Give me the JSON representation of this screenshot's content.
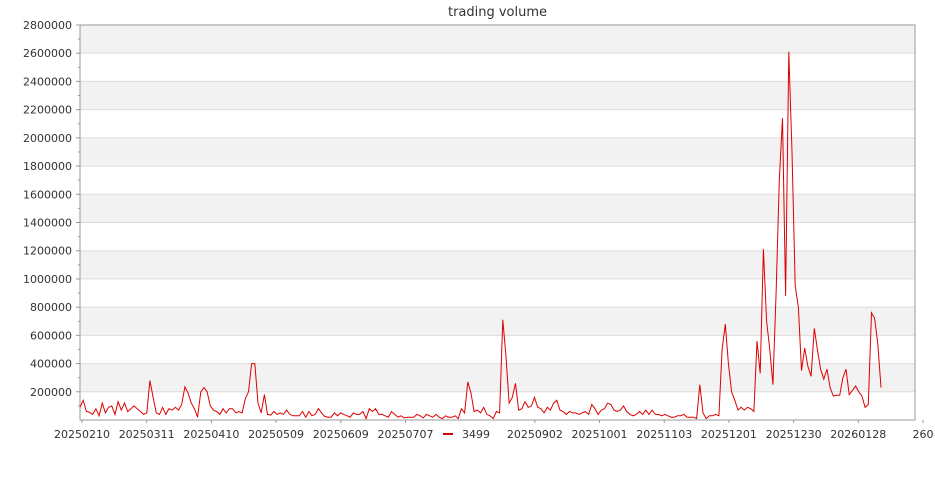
{
  "chart_data": {
    "type": "line",
    "title": "trading volume",
    "xlabel": "",
    "ylabel": "",
    "ylim": [
      0,
      2800000
    ],
    "yticks": [
      200000,
      400000,
      600000,
      800000,
      1000000,
      1200000,
      1400000,
      1600000,
      1800000,
      2000000,
      2200000,
      2400000,
      2600000,
      2800000
    ],
    "xtick_labels": [
      "20250210",
      "20250311",
      "20250410",
      "20250509",
      "20250609",
      "20250707",
      "20250902",
      "20251001",
      "20251103",
      "20251201",
      "20251230",
      "20260128",
      "260"
    ],
    "grid": true,
    "legend_position": "bottom-center",
    "colors": {
      "series": "#dd0000",
      "band": "#f2f2f2",
      "grid": "#dddddd",
      "axis": "#999999"
    },
    "series": [
      {
        "name": "3499",
        "values": [
          90000,
          140000,
          60000,
          55000,
          40000,
          80000,
          30000,
          120000,
          50000,
          90000,
          100000,
          40000,
          130000,
          70000,
          120000,
          60000,
          80000,
          100000,
          80000,
          60000,
          40000,
          50000,
          280000,
          160000,
          50000,
          40000,
          90000,
          40000,
          80000,
          70000,
          90000,
          70000,
          110000,
          235000,
          190000,
          120000,
          80000,
          20000,
          200000,
          230000,
          200000,
          100000,
          70000,
          60000,
          40000,
          80000,
          50000,
          80000,
          80000,
          50000,
          60000,
          50000,
          150000,
          200000,
          400000,
          400000,
          120000,
          50000,
          180000,
          40000,
          35000,
          60000,
          40000,
          50000,
          40000,
          70000,
          40000,
          30000,
          30000,
          30000,
          60000,
          20000,
          60000,
          30000,
          40000,
          80000,
          50000,
          25000,
          20000,
          20000,
          50000,
          30000,
          50000,
          40000,
          30000,
          20000,
          50000,
          40000,
          40000,
          60000,
          10000,
          80000,
          60000,
          80000,
          40000,
          40000,
          30000,
          20000,
          60000,
          40000,
          20000,
          30000,
          15000,
          20000,
          20000,
          20000,
          40000,
          30000,
          15000,
          40000,
          30000,
          20000,
          40000,
          20000,
          10000,
          30000,
          20000,
          20000,
          30000,
          10000,
          80000,
          50000,
          270000,
          190000,
          60000,
          70000,
          50000,
          90000,
          40000,
          30000,
          10000,
          60000,
          50000,
          710000,
          460000,
          120000,
          160000,
          260000,
          70000,
          80000,
          130000,
          90000,
          100000,
          160000,
          90000,
          80000,
          50000,
          90000,
          70000,
          120000,
          140000,
          70000,
          60000,
          40000,
          60000,
          50000,
          50000,
          40000,
          50000,
          60000,
          40000,
          110000,
          80000,
          40000,
          70000,
          80000,
          120000,
          110000,
          70000,
          60000,
          70000,
          100000,
          60000,
          40000,
          30000,
          40000,
          60000,
          40000,
          70000,
          40000,
          70000,
          40000,
          40000,
          30000,
          40000,
          30000,
          20000,
          20000,
          30000,
          30000,
          40000,
          20000,
          20000,
          20000,
          10000,
          250000,
          50000,
          10000,
          30000,
          30000,
          40000,
          30000,
          500000,
          680000,
          400000,
          200000,
          140000,
          70000,
          90000,
          70000,
          90000,
          80000,
          60000,
          560000,
          330000,
          1210000,
          700000,
          500000,
          250000,
          900000,
          1700000,
          2140000,
          880000,
          2610000,
          1900000,
          950000,
          800000,
          350000,
          510000,
          380000,
          310000,
          650000,
          500000,
          360000,
          290000,
          360000,
          230000,
          170000,
          175000,
          175000,
          300000,
          360000,
          180000,
          210000,
          240000,
          200000,
          170000,
          90000,
          110000,
          760000,
          720000,
          540000,
          230000
        ]
      }
    ]
  },
  "legend": {
    "label": "3499"
  }
}
